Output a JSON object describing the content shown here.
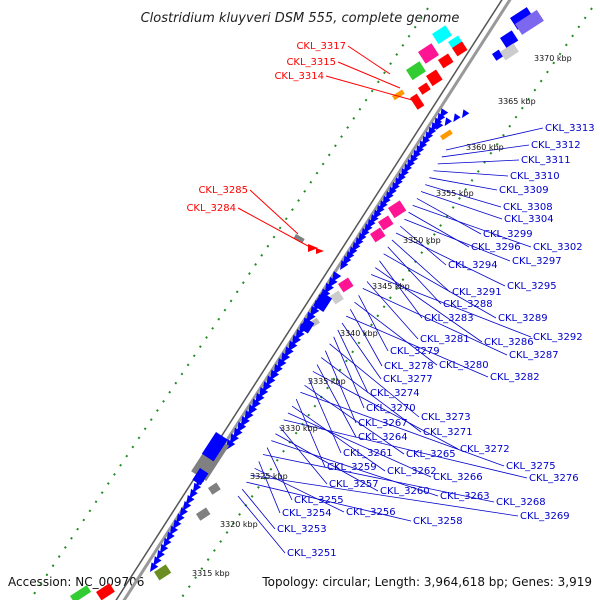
{
  "title": "Clostridium kluyveri DSM 555, complete genome",
  "accession": "Accession: NC_009706",
  "summary": "Topology: circular; Length: 3,964,618 bp; Genes: 3,919",
  "colors": {
    "backbone": "#9a9a9a",
    "forward_gene": "#0000ff",
    "reverse_gene": "#0000ff",
    "rna_red": "#ff0000",
    "magenta": "#ff1493",
    "cyan": "#00ffff",
    "green": "#33cc33",
    "gray": "#808080",
    "orange": "#ff9900",
    "purple": "#7b68ee",
    "olive": "#6b8e23",
    "label_red": "#ff0000",
    "label_blue": "#0000cc",
    "ticks_green": "#228b22"
  },
  "kbp_ticks": [
    "3370 kbp",
    "3365 kbp",
    "3360 kbp",
    "3355 kbp",
    "3350 kbp",
    "3345 kbp",
    "3340 kbp",
    "3335 kbp",
    "3330 kbp",
    "3325 kbp",
    "3320 kbp",
    "3315 kbp"
  ],
  "labels_red": [
    "CKL_3317",
    "CKL_3315",
    "CKL_3314",
    "CKL_3285",
    "CKL_3284"
  ],
  "labels_blue": [
    "CKL_3313",
    "CKL_3312",
    "CKL_3311",
    "CKL_3310",
    "CKL_3309",
    "CKL_3308",
    "CKL_3304",
    "CKL_3299",
    "CKL_3302",
    "CKL_3296",
    "CKL_3297",
    "CKL_3294",
    "CKL_3295",
    "CKL_3291",
    "CKL_3288",
    "CKL_3289",
    "CKL_3283",
    "CKL_3286",
    "CKL_3292",
    "CKL_3281",
    "CKL_3287",
    "CKL_3279",
    "CKL_3280",
    "CKL_3278",
    "CKL_3282",
    "CKL_3277",
    "CKL_3274",
    "CKL_3270",
    "CKL_3273",
    "CKL_3267",
    "CKL_3271",
    "CKL_3264",
    "CKL_3272",
    "CKL_3261",
    "CKL_3265",
    "CKL_3275",
    "CKL_3259",
    "CKL_3262",
    "CKL_3266",
    "CKL_3276",
    "CKL_3257",
    "CKL_3260",
    "CKL_3263",
    "CKL_3255",
    "CKL_3268",
    "CKL_3254",
    "CKL_3256",
    "CKL_3269",
    "CKL_3258",
    "CKL_3253",
    "CKL_3251"
  ]
}
